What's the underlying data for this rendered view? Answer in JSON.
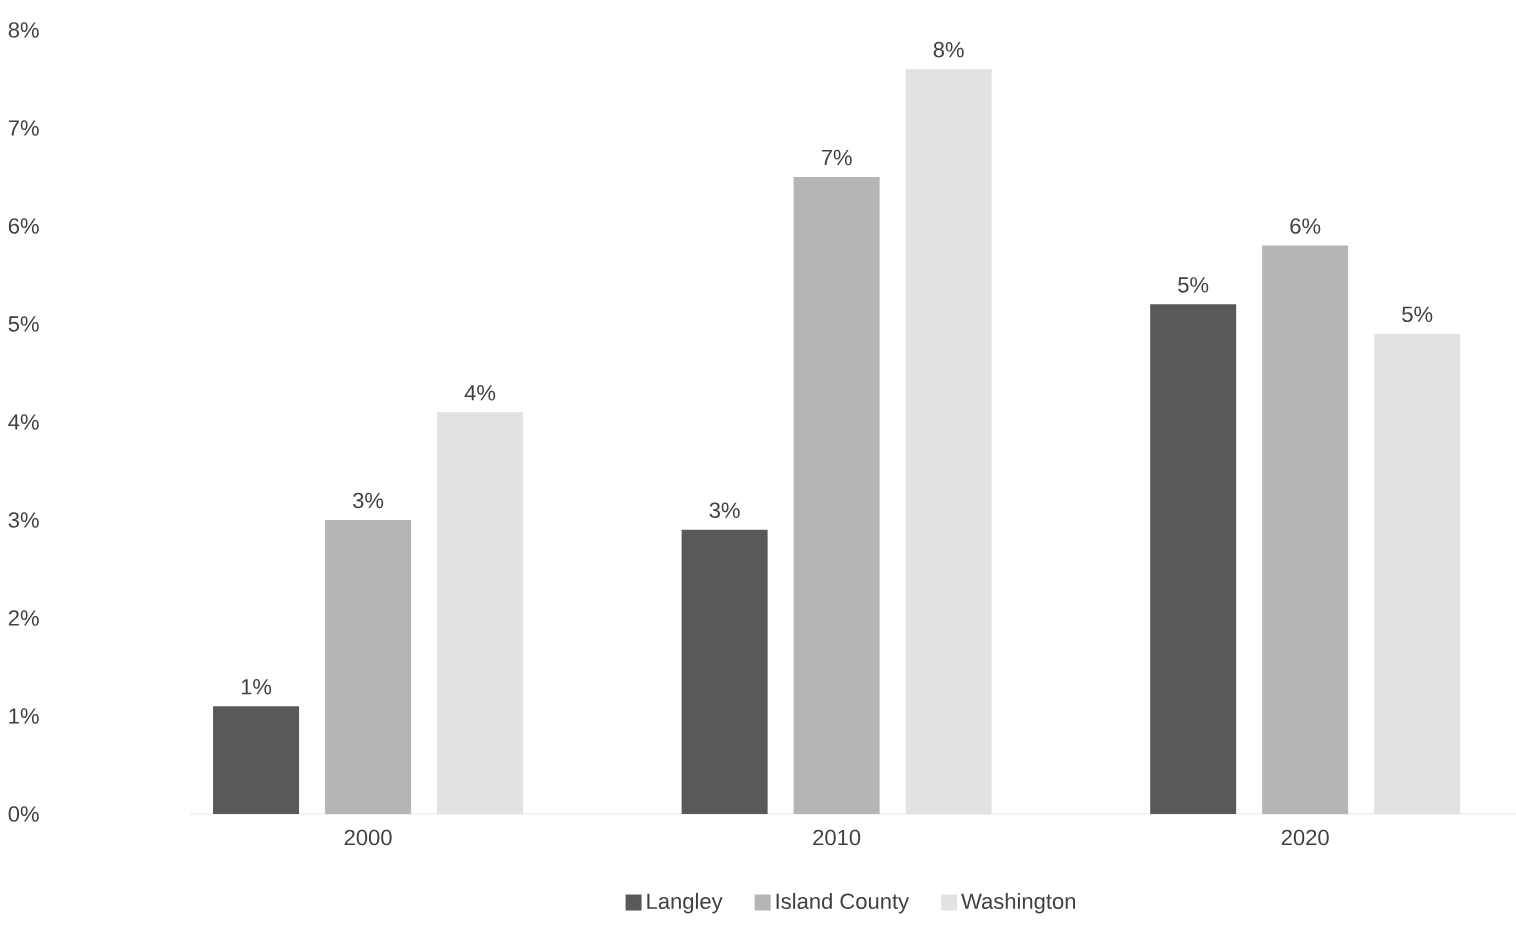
{
  "chart_data": {
    "type": "bar",
    "categories": [
      "2000",
      "2010",
      "2020"
    ],
    "series": [
      {
        "name": "Langley",
        "color": "#595959",
        "values": [
          1.1,
          2.9,
          5.2
        ],
        "value_labels": [
          "1%",
          "3%",
          "5%"
        ]
      },
      {
        "name": "Island County",
        "color": "#b5b5b5",
        "values": [
          3.0,
          6.5,
          5.8
        ],
        "value_labels": [
          "3%",
          "7%",
          "6%"
        ]
      },
      {
        "name": "Washington",
        "color": "#e2e2e2",
        "values": [
          4.1,
          7.6,
          4.9
        ],
        "value_labels": [
          "4%",
          "8%",
          "5%"
        ]
      }
    ],
    "ylim": [
      0,
      8
    ],
    "yticks": [
      {
        "value": 0,
        "label": "0%"
      },
      {
        "value": 1,
        "label": "1%"
      },
      {
        "value": 2,
        "label": "2%"
      },
      {
        "value": 3,
        "label": "3%"
      },
      {
        "value": 4,
        "label": "4%"
      },
      {
        "value": 5,
        "label": "5%"
      },
      {
        "value": 6,
        "label": "6%"
      },
      {
        "value": 7,
        "label": "7%"
      },
      {
        "value": 8,
        "label": "8%"
      }
    ],
    "grid": false,
    "legend": "bottom"
  }
}
